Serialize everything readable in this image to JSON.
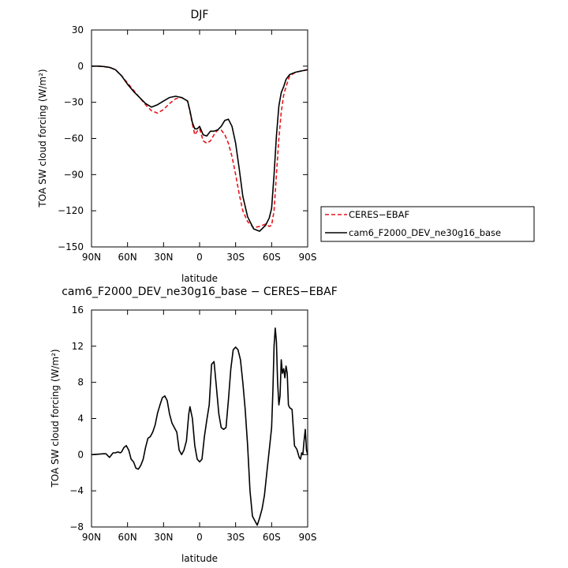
{
  "chart_data": [
    {
      "type": "line",
      "title": "DJF",
      "xlabel": "latitude",
      "ylabel": "TOA SW cloud forcing (W/m²)",
      "xlim": [
        90,
        -90
      ],
      "ylim": [
        -150,
        30
      ],
      "xticks": [
        90,
        60,
        30,
        0,
        -30,
        -60,
        -90
      ],
      "xtick_labels": [
        "90N",
        "60N",
        "30N",
        "0",
        "30S",
        "60S",
        "90S"
      ],
      "yticks": [
        30,
        0,
        -30,
        -60,
        -90,
        -120,
        -150
      ],
      "ytick_labels": [
        "30",
        "0",
        "−30",
        "−60",
        "−90",
        "−120",
        "−150"
      ],
      "legend_position": "right",
      "series": [
        {
          "name": "CERES−EBAF",
          "color": "#e8141c",
          "dash": "dashed",
          "x": [
            90,
            85,
            80,
            75,
            70,
            65,
            60,
            55,
            50,
            45,
            40,
            35,
            30,
            25,
            20,
            15,
            10,
            8,
            6,
            4,
            2,
            0,
            -3,
            -6,
            -9,
            -12,
            -15,
            -18,
            -21,
            -24,
            -27,
            -30,
            -33,
            -36,
            -40,
            -45,
            -50,
            -55,
            -58,
            -60,
            -62,
            -64,
            -66,
            -68,
            -70,
            -72,
            -75,
            -80,
            -85,
            -90
          ],
          "y": [
            0,
            0,
            -0.3,
            -1,
            -3,
            -8,
            -14,
            -20,
            -26,
            -32,
            -37,
            -39,
            -36,
            -31,
            -27,
            -26,
            -29,
            -38,
            -48,
            -57,
            -54,
            -52,
            -62,
            -64,
            -62,
            -57,
            -53,
            -53,
            -57,
            -64,
            -75,
            -90,
            -106,
            -120,
            -129,
            -134,
            -133,
            -131,
            -133,
            -132,
            -120,
            -90,
            -60,
            -38,
            -24,
            -17,
            -8,
            -5,
            -4,
            -3
          ]
        },
        {
          "name": "cam6_F2000_DEV_ne30g16_base",
          "color": "#000000",
          "dash": "solid",
          "x": [
            90,
            85,
            80,
            75,
            70,
            65,
            60,
            55,
            50,
            45,
            40,
            35,
            30,
            25,
            20,
            15,
            10,
            8,
            6,
            4,
            2,
            0,
            -3,
            -6,
            -9,
            -12,
            -15,
            -18,
            -21,
            -24,
            -27,
            -30,
            -33,
            -36,
            -40,
            -45,
            -50,
            -55,
            -58,
            -60,
            -62,
            -64,
            -66,
            -68,
            -70,
            -72,
            -75,
            -80,
            -85,
            -90
          ],
          "y": [
            0,
            0,
            -0.3,
            -1,
            -3,
            -8,
            -15,
            -21,
            -26,
            -31,
            -34,
            -32,
            -29,
            -26,
            -25,
            -26,
            -29,
            -37,
            -47,
            -52,
            -52,
            -50,
            -57,
            -58,
            -54,
            -54,
            -53,
            -50,
            -45,
            -44,
            -50,
            -64,
            -85,
            -108,
            -125,
            -135,
            -137,
            -132,
            -126,
            -118,
            -90,
            -58,
            -33,
            -22,
            -17,
            -11,
            -7,
            -5,
            -4,
            -3
          ]
        }
      ]
    },
    {
      "type": "line",
      "title": "cam6_F2000_DEV_ne30g16_base − CERES−EBAF",
      "xlabel": "latitude",
      "ylabel": "TOA SW cloud forcing (W/m²)",
      "xlim": [
        90,
        -90
      ],
      "ylim": [
        -8,
        16
      ],
      "xticks": [
        90,
        60,
        30,
        0,
        -30,
        -60,
        -90
      ],
      "xtick_labels": [
        "90N",
        "60N",
        "30N",
        "0",
        "30S",
        "60S",
        "90S"
      ],
      "yticks": [
        16,
        12,
        8,
        4,
        0,
        -4,
        -8
      ],
      "ytick_labels": [
        "16",
        "12",
        "8",
        "4",
        "0",
        "−4",
        "−8"
      ],
      "series": [
        {
          "color": "#000000",
          "x": [
            90,
            85,
            80,
            78,
            75,
            72,
            70,
            68,
            66,
            65,
            63,
            61,
            59,
            57,
            55,
            53,
            51,
            49,
            47,
            45,
            43,
            41,
            39,
            37,
            35,
            33,
            31,
            29,
            27,
            25,
            23,
            21,
            19,
            17,
            15,
            13,
            11,
            9,
            8,
            6,
            4,
            2,
            0,
            -2,
            -4,
            -6,
            -8,
            -10,
            -12,
            -14,
            -16,
            -18,
            -20,
            -22,
            -24,
            -26,
            -28,
            -30,
            -32,
            -34,
            -36,
            -38,
            -40,
            -42,
            -44,
            -46,
            -48,
            -50,
            -52,
            -54,
            -56,
            -58,
            -60,
            -61,
            -62,
            -63,
            -64,
            -65,
            -66,
            -67,
            -68,
            -69,
            -70,
            -71,
            -72,
            -73,
            -74,
            -75,
            -77,
            -79,
            -81,
            -83,
            -84,
            -85,
            -86,
            -87,
            -88,
            -89,
            -90
          ],
          "y": [
            0,
            0.05,
            0.1,
            0.1,
            -0.3,
            0.2,
            0.2,
            0.3,
            0.2,
            0.3,
            0.8,
            1.0,
            0.5,
            -0.5,
            -0.8,
            -1.5,
            -1.6,
            -1.2,
            -0.5,
            0.8,
            1.8,
            2.0,
            2.5,
            3.3,
            4.6,
            5.5,
            6.3,
            6.5,
            6.0,
            4.5,
            3.5,
            3.0,
            2.5,
            0.5,
            0.0,
            0.5,
            1.5,
            4.5,
            5.3,
            4.0,
            1.0,
            -0.5,
            -0.8,
            -0.5,
            2.0,
            3.8,
            5.5,
            10.0,
            10.3,
            7.5,
            4.5,
            3.0,
            2.8,
            3.0,
            6.0,
            9.5,
            11.6,
            11.9,
            11.6,
            10.5,
            8.0,
            5.0,
            1.0,
            -4.0,
            -6.8,
            -7.3,
            -7.8,
            -7.0,
            -6.0,
            -4.5,
            -2.0,
            0.5,
            3.0,
            7.0,
            12.0,
            14.0,
            12.5,
            8.0,
            5.5,
            6.5,
            10.5,
            9.0,
            9.5,
            8.5,
            9.8,
            9.0,
            5.5,
            5.2,
            5.0,
            1.0,
            0.6,
            -0.3,
            -0.5,
            0.2,
            0.0,
            1.5,
            2.8,
            0.5,
            0.0
          ]
        }
      ]
    }
  ]
}
